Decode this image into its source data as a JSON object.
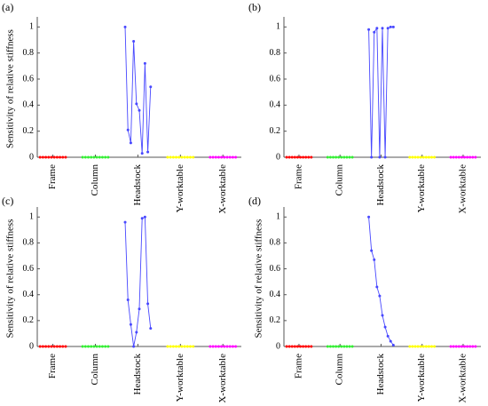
{
  "chart_data": [
    {
      "type": "line",
      "label": "(a)",
      "ylabel": "Sensitivity of relative stiffness",
      "xlim": [
        0,
        72
      ],
      "ylim": [
        0,
        1.05
      ],
      "yticks": [
        0,
        0.2,
        0.4,
        0.6,
        0.8,
        1
      ],
      "xticks": [
        {
          "value": 5.5,
          "label": "Frame"
        },
        {
          "value": 20.5,
          "label": "Column"
        },
        {
          "value": 35.5,
          "label": "Headstock"
        },
        {
          "value": 50.5,
          "label": "Y-worktable"
        },
        {
          "value": 65.5,
          "label": "X-worktable"
        }
      ],
      "series": [
        {
          "color": "#ff0000",
          "x": [
            1,
            2,
            3,
            4,
            5,
            6,
            7,
            8,
            9,
            10
          ],
          "values": [
            0,
            0,
            0,
            0,
            0,
            0,
            0,
            0,
            0,
            0
          ]
        },
        {
          "color": "#33ee33",
          "x": [
            16,
            17,
            18,
            19,
            20,
            21,
            22,
            23,
            24,
            25
          ],
          "values": [
            0,
            0,
            0,
            0,
            0,
            0,
            0,
            0,
            0,
            0
          ]
        },
        {
          "color": "#4848ff",
          "x": [
            31,
            32,
            33,
            34,
            35,
            36,
            37,
            38,
            39,
            40
          ],
          "values": [
            1,
            0.21,
            0.11,
            0.89,
            0.41,
            0.36,
            0.03,
            0.72,
            0.04,
            0.54
          ]
        },
        {
          "color": "#ffff00",
          "x": [
            46,
            47,
            48,
            49,
            50,
            51,
            52,
            53,
            54,
            55
          ],
          "values": [
            0,
            0,
            0,
            0,
            0,
            0,
            0,
            0,
            0,
            0
          ]
        },
        {
          "color": "#ff00ff",
          "x": [
            61,
            62,
            63,
            64,
            65,
            66,
            67,
            68,
            69,
            70
          ],
          "values": [
            0,
            0,
            0,
            0,
            0,
            0,
            0,
            0,
            0,
            0
          ]
        }
      ]
    },
    {
      "type": "line",
      "label": "(b)",
      "xlim": [
        0,
        72
      ],
      "ylim": [
        0,
        1.05
      ],
      "yticks": [
        0,
        0.2,
        0.4,
        0.6,
        0.8,
        1
      ],
      "xticks": [
        {
          "value": 5.5,
          "label": "Frame"
        },
        {
          "value": 20.5,
          "label": "Column"
        },
        {
          "value": 35.5,
          "label": "Headstock"
        },
        {
          "value": 50.5,
          "label": "Y-worktable"
        },
        {
          "value": 65.5,
          "label": "X-worktable"
        }
      ],
      "series": [
        {
          "color": "#ff0000",
          "x": [
            1,
            2,
            3,
            4,
            5,
            6,
            7,
            8,
            9,
            10
          ],
          "values": [
            0,
            0,
            0,
            0,
            0,
            0,
            0,
            0,
            0,
            0
          ]
        },
        {
          "color": "#33ee33",
          "x": [
            16,
            17,
            18,
            19,
            20,
            21,
            22,
            23,
            24,
            25
          ],
          "values": [
            0,
            0,
            0,
            0,
            0,
            0,
            0,
            0,
            0,
            0
          ]
        },
        {
          "color": "#4848ff",
          "x": [
            31,
            32,
            33,
            34,
            35,
            36,
            37,
            38,
            39,
            40
          ],
          "values": [
            0.98,
            0,
            0.96,
            0.99,
            0,
            0.99,
            0,
            0.99,
            1,
            1
          ]
        },
        {
          "color": "#ffff00",
          "x": [
            46,
            47,
            48,
            49,
            50,
            51,
            52,
            53,
            54,
            55
          ],
          "values": [
            0,
            0,
            0,
            0,
            0,
            0,
            0,
            0,
            0,
            0
          ]
        },
        {
          "color": "#ff00ff",
          "x": [
            61,
            62,
            63,
            64,
            65,
            66,
            67,
            68,
            69,
            70
          ],
          "values": [
            0,
            0,
            0,
            0,
            0,
            0,
            0,
            0,
            0,
            0
          ]
        }
      ]
    },
    {
      "type": "line",
      "label": "(c)",
      "ylabel": "Sensitivity of relative stiffness",
      "xlim": [
        0,
        72
      ],
      "ylim": [
        0,
        1.05
      ],
      "yticks": [
        0,
        0.2,
        0.4,
        0.6,
        0.8,
        1
      ],
      "xticks": [
        {
          "value": 5.5,
          "label": "Frame"
        },
        {
          "value": 20.5,
          "label": "Column"
        },
        {
          "value": 35.5,
          "label": "Headstock"
        },
        {
          "value": 50.5,
          "label": "Y-worktable"
        },
        {
          "value": 65.5,
          "label": "X-worktable"
        }
      ],
      "series": [
        {
          "color": "#ff0000",
          "x": [
            1,
            2,
            3,
            4,
            5,
            6,
            7,
            8,
            9,
            10
          ],
          "values": [
            0,
            0,
            0,
            0,
            0,
            0,
            0,
            0,
            0,
            0
          ]
        },
        {
          "color": "#33ee33",
          "x": [
            16,
            17,
            18,
            19,
            20,
            21,
            22,
            23,
            24,
            25
          ],
          "values": [
            0,
            0,
            0,
            0,
            0,
            0,
            0,
            0,
            0,
            0
          ]
        },
        {
          "color": "#4848ff",
          "x": [
            31,
            32,
            33,
            34,
            35,
            36,
            37,
            38,
            39,
            40
          ],
          "values": [
            0.96,
            0.36,
            0.17,
            0,
            0.11,
            0.29,
            0.99,
            1,
            0.33,
            0.14
          ]
        },
        {
          "color": "#ffff00",
          "x": [
            46,
            47,
            48,
            49,
            50,
            51,
            52,
            53,
            54,
            55
          ],
          "values": [
            0,
            0,
            0,
            0,
            0,
            0,
            0,
            0,
            0,
            0
          ]
        },
        {
          "color": "#ff00ff",
          "x": [
            61,
            62,
            63,
            64,
            65,
            66,
            67,
            68,
            69,
            70
          ],
          "values": [
            0,
            0,
            0,
            0,
            0,
            0,
            0,
            0,
            0,
            0
          ]
        }
      ]
    },
    {
      "type": "line",
      "label": "(d)",
      "ylabel": "Sensitivity of relative stiffness",
      "xlim": [
        0,
        72
      ],
      "ylim": [
        0,
        1.05
      ],
      "yticks": [
        0,
        0.2,
        0.4,
        0.6,
        0.8,
        1
      ],
      "xticks": [
        {
          "value": 5.5,
          "label": "Frame"
        },
        {
          "value": 20.5,
          "label": "Column"
        },
        {
          "value": 35.5,
          "label": "Headstock"
        },
        {
          "value": 50.5,
          "label": "Y-worktable"
        },
        {
          "value": 65.5,
          "label": "X-worktable"
        }
      ],
      "series": [
        {
          "color": "#ff0000",
          "x": [
            1,
            2,
            3,
            4,
            5,
            6,
            7,
            8,
            9,
            10
          ],
          "values": [
            0,
            0,
            0,
            0,
            0,
            0,
            0,
            0,
            0,
            0
          ]
        },
        {
          "color": "#33ee33",
          "x": [
            16,
            17,
            18,
            19,
            20,
            21,
            22,
            23,
            24,
            25
          ],
          "values": [
            0,
            0,
            0,
            0,
            0,
            0,
            0,
            0,
            0,
            0
          ]
        },
        {
          "color": "#4848ff",
          "x": [
            31,
            32,
            33,
            34,
            35,
            36,
            37,
            38,
            39,
            40
          ],
          "values": [
            1,
            0.74,
            0.67,
            0.46,
            0.39,
            0.24,
            0.15,
            0.08,
            0.04,
            0.01
          ]
        },
        {
          "color": "#ffff00",
          "x": [
            46,
            47,
            48,
            49,
            50,
            51,
            52,
            53,
            54,
            55
          ],
          "values": [
            0,
            0,
            0,
            0,
            0,
            0,
            0,
            0,
            0,
            0
          ]
        },
        {
          "color": "#ff00ff",
          "x": [
            61,
            62,
            63,
            64,
            65,
            66,
            67,
            68,
            69,
            70
          ],
          "values": [
            0,
            0,
            0,
            0,
            0,
            0,
            0,
            0,
            0,
            0
          ]
        }
      ]
    }
  ]
}
